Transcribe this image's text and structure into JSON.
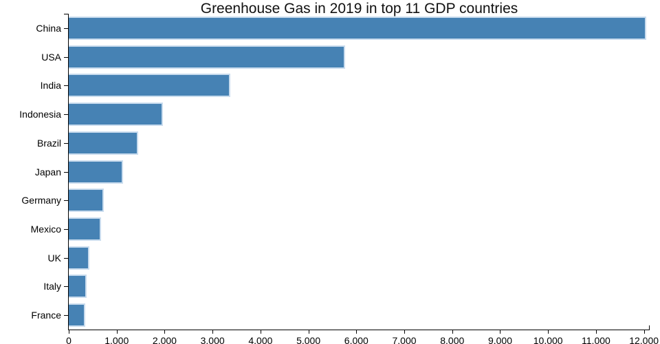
{
  "chart_data": {
    "type": "bar",
    "orientation": "horizontal",
    "title": "Greenhouse Gas in 2019 in top 11 GDP countries",
    "categories": [
      "China",
      "USA",
      "India",
      "Indonesia",
      "Brazil",
      "Japan",
      "Germany",
      "Mexico",
      "UK",
      "Italy",
      "France"
    ],
    "values": [
      12050,
      5770,
      3370,
      1960,
      1450,
      1130,
      730,
      670,
      430,
      380,
      350
    ],
    "xlabel": "",
    "ylabel": "",
    "xlim": [
      0,
      12120
    ],
    "xticks": {
      "values": [
        0,
        1000,
        2000,
        3000,
        4000,
        5000,
        6000,
        7000,
        8000,
        9000,
        10000,
        11000,
        12000
      ],
      "labels": [
        "0",
        "1.000",
        "2.000",
        "3.000",
        "4.000",
        "5.000",
        "6.000",
        "7.000",
        "8.000",
        "9.000",
        "10.000",
        "11.000",
        "12.000"
      ]
    },
    "grid": false,
    "legend": "none",
    "colors": {
      "bar_fill": "#4682b4",
      "bar_stroke": "#c9dcee",
      "axis": "#000000",
      "title_text": "#111111",
      "tick_text": "#000000",
      "background": "#ffffff"
    }
  }
}
